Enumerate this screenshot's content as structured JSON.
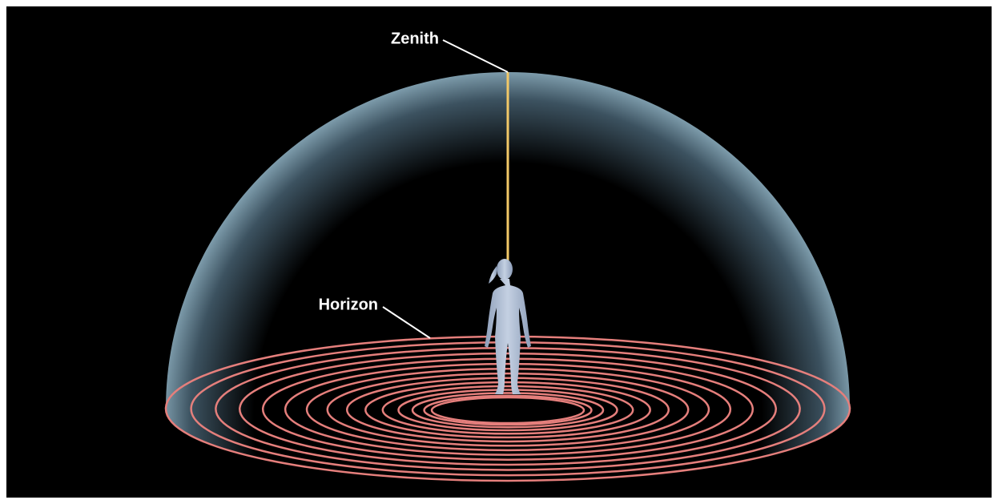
{
  "labels": {
    "zenith": "Zenith",
    "horizon": "Horizon"
  }
}
